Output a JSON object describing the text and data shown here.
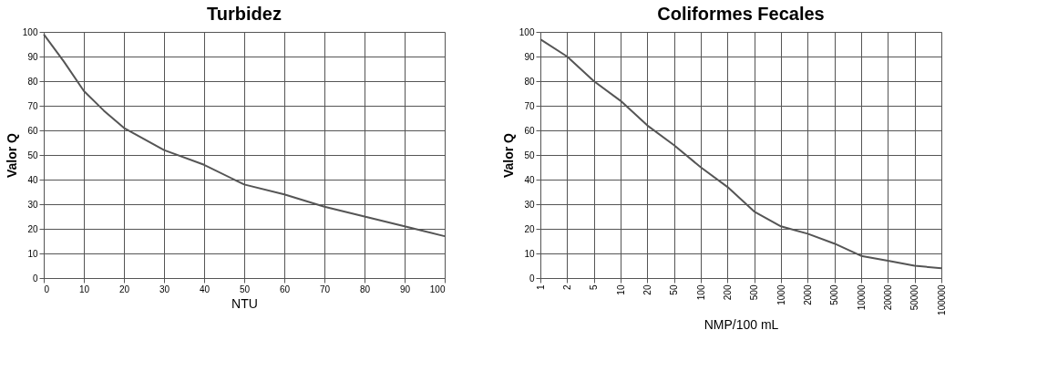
{
  "chart_data": [
    {
      "type": "line",
      "title": "Turbidez",
      "xlabel": "NTU",
      "ylabel": "Valor Q",
      "x": [
        0,
        5,
        10,
        15,
        20,
        30,
        40,
        50,
        60,
        70,
        80,
        90,
        100
      ],
      "series": [
        {
          "color": "#555555",
          "values": [
            99,
            88,
            76,
            68,
            61,
            52,
            46,
            38,
            34,
            29,
            25,
            21,
            17
          ]
        }
      ],
      "xlim": [
        0,
        100
      ],
      "xticks": [
        0,
        10,
        20,
        30,
        40,
        50,
        60,
        70,
        80,
        90,
        100
      ],
      "ylim": [
        0,
        100
      ],
      "yticks": [
        0,
        10,
        20,
        30,
        40,
        50,
        60,
        70,
        80,
        90,
        100
      ],
      "grid": true,
      "marker": "none",
      "line_style": "solid"
    },
    {
      "type": "line",
      "title": "Coliformes Fecales",
      "xlabel": "NMP/100 mL",
      "ylabel": "Valor Q",
      "categories": [
        "1",
        "2",
        "5",
        "10",
        "20",
        "50",
        "100",
        "200",
        "500",
        "1000",
        "2000",
        "5000",
        "10000",
        "20000",
        "50000",
        "100000"
      ],
      "series": [
        {
          "color": "#555555",
          "values": [
            97,
            90,
            80,
            72,
            62,
            54,
            45,
            37,
            27,
            21,
            18,
            14,
            9,
            7,
            5,
            4
          ]
        }
      ],
      "ylim": [
        0,
        100
      ],
      "yticks": [
        0,
        10,
        20,
        30,
        40,
        50,
        60,
        70,
        80,
        90,
        100
      ],
      "grid": true,
      "marker": "none",
      "line_style": "solid"
    }
  ]
}
